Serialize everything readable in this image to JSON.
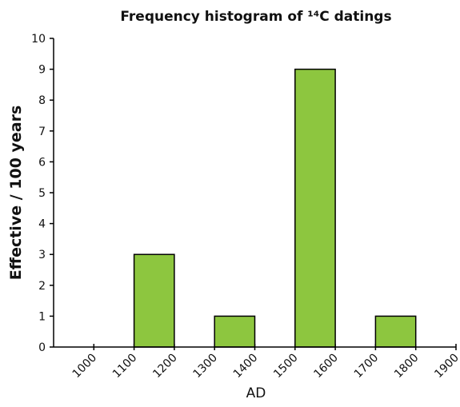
{
  "chart_data": {
    "type": "histogram",
    "title": "Frequency histogram of ¹⁴C datings",
    "x_label": "AD",
    "y_label": "Effective / 100 years",
    "bins": [
      1000,
      1100,
      1200,
      1300,
      1400,
      1500,
      1600,
      1700,
      1800,
      1900
    ],
    "values": [
      0,
      3,
      0,
      1,
      0,
      9,
      0,
      1,
      0
    ],
    "color": "#8dc63f",
    "xlim": [
      900,
      1900
    ],
    "xticks": [
      1000,
      1100,
      1200,
      1300,
      1400,
      1500,
      1600,
      1700,
      1800,
      1900
    ],
    "ylim": [
      0,
      10
    ],
    "yticks": [
      0,
      1,
      2,
      3,
      4,
      5,
      6,
      7,
      8,
      9,
      10
    ]
  }
}
